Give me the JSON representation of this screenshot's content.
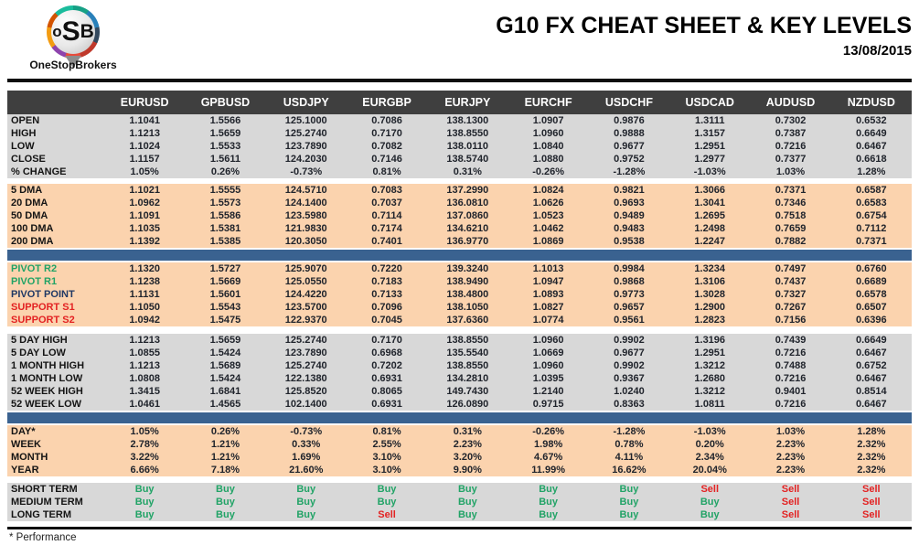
{
  "header": {
    "title": "G10 FX CHEAT SHEET & KEY LEVELS",
    "date": "13/08/2015",
    "logo": {
      "o": "o",
      "s": "S",
      "b": "B",
      "brand": "OneStopBrokers"
    }
  },
  "colors": {
    "header_bg": "#3F3F3F",
    "section_gray": "#D8D8D8",
    "section_peach": "#FBD3AE",
    "divider_blue": "#3A6290",
    "buy_green": "#21A366",
    "sell_red": "#E32222",
    "pivot_navy": "#1F3864"
  },
  "table": {
    "columns": [
      "EURUSD",
      "GPBUSD",
      "USDJPY",
      "EURGBP",
      "EURJPY",
      "EURCHF",
      "USDCHF",
      "USDCAD",
      "AUDUSD",
      "NZDUSD"
    ],
    "sections": [
      {
        "type": "rows",
        "id": "ohlc",
        "bg": "gray",
        "rows": [
          {
            "label": "OPEN",
            "values": [
              "1.1041",
              "1.5566",
              "125.1000",
              "0.7086",
              "138.1300",
              "1.0907",
              "0.9876",
              "1.3111",
              "0.7302",
              "0.6532"
            ]
          },
          {
            "label": "HIGH",
            "values": [
              "1.1213",
              "1.5659",
              "125.2740",
              "0.7170",
              "138.8550",
              "1.0960",
              "0.9888",
              "1.3157",
              "0.7387",
              "0.6649"
            ]
          },
          {
            "label": "LOW",
            "values": [
              "1.1024",
              "1.5533",
              "123.7890",
              "0.7082",
              "138.0110",
              "1.0840",
              "0.9677",
              "1.2951",
              "0.7216",
              "0.6467"
            ]
          },
          {
            "label": "CLOSE",
            "values": [
              "1.1157",
              "1.5611",
              "124.2030",
              "0.7146",
              "138.5740",
              "1.0880",
              "0.9752",
              "1.2977",
              "0.7377",
              "0.6618"
            ]
          },
          {
            "label": "% CHANGE",
            "values": [
              "1.05%",
              "0.26%",
              "-0.73%",
              "0.81%",
              "0.31%",
              "-0.26%",
              "-1.28%",
              "-1.03%",
              "1.03%",
              "1.28%"
            ]
          }
        ]
      },
      {
        "type": "rows",
        "id": "dma",
        "bg": "peach",
        "rows": [
          {
            "label": "5 DMA",
            "values": [
              "1.1021",
              "1.5555",
              "124.5710",
              "0.7083",
              "137.2990",
              "1.0824",
              "0.9821",
              "1.3066",
              "0.7371",
              "0.6587"
            ]
          },
          {
            "label": "20 DMA",
            "values": [
              "1.0962",
              "1.5573",
              "124.1400",
              "0.7037",
              "136.0810",
              "1.0626",
              "0.9693",
              "1.3041",
              "0.7346",
              "0.6583"
            ]
          },
          {
            "label": "50 DMA",
            "values": [
              "1.1091",
              "1.5586",
              "123.5980",
              "0.7114",
              "137.0860",
              "1.0523",
              "0.9489",
              "1.2695",
              "0.7518",
              "0.6754"
            ]
          },
          {
            "label": "100 DMA",
            "values": [
              "1.1035",
              "1.5381",
              "121.9830",
              "0.7174",
              "134.6210",
              "1.0462",
              "0.9483",
              "1.2498",
              "0.7659",
              "0.7112"
            ]
          },
          {
            "label": "200 DMA",
            "values": [
              "1.1392",
              "1.5385",
              "120.3050",
              "0.7401",
              "136.9770",
              "1.0869",
              "0.9538",
              "1.2247",
              "0.7882",
              "0.7371"
            ]
          }
        ]
      },
      {
        "type": "divider"
      },
      {
        "type": "rows",
        "id": "pivot",
        "bg": "peach",
        "rows": [
          {
            "label": "PIVOT R2",
            "color": "green",
            "values": [
              "1.1320",
              "1.5727",
              "125.9070",
              "0.7220",
              "139.3240",
              "1.1013",
              "0.9984",
              "1.3234",
              "0.7497",
              "0.6760"
            ]
          },
          {
            "label": "PIVOT R1",
            "color": "green",
            "values": [
              "1.1238",
              "1.5669",
              "125.0550",
              "0.7183",
              "138.9490",
              "1.0947",
              "0.9868",
              "1.3106",
              "0.7437",
              "0.6689"
            ]
          },
          {
            "label": "PIVOT POINT",
            "color": "navy",
            "values": [
              "1.1131",
              "1.5601",
              "124.4220",
              "0.7133",
              "138.4800",
              "1.0893",
              "0.9773",
              "1.3028",
              "0.7327",
              "0.6578"
            ]
          },
          {
            "label": "SUPPORT S1",
            "color": "red",
            "values": [
              "1.1050",
              "1.5543",
              "123.5700",
              "0.7096",
              "138.1050",
              "1.0827",
              "0.9657",
              "1.2900",
              "0.7267",
              "0.6507"
            ]
          },
          {
            "label": "SUPPORT S2",
            "color": "red",
            "values": [
              "1.0942",
              "1.5475",
              "122.9370",
              "0.7045",
              "137.6360",
              "1.0774",
              "0.9561",
              "1.2823",
              "0.7156",
              "0.6396"
            ]
          }
        ]
      },
      {
        "type": "rows",
        "id": "range",
        "bg": "gray",
        "rows": [
          {
            "label": "5 DAY HIGH",
            "values": [
              "1.1213",
              "1.5659",
              "125.2740",
              "0.7170",
              "138.8550",
              "1.0960",
              "0.9902",
              "1.3196",
              "0.7439",
              "0.6649"
            ]
          },
          {
            "label": "5 DAY LOW",
            "values": [
              "1.0855",
              "1.5424",
              "123.7890",
              "0.6968",
              "135.5540",
              "1.0669",
              "0.9677",
              "1.2951",
              "0.7216",
              "0.6467"
            ]
          },
          {
            "label": "1 MONTH HIGH",
            "values": [
              "1.1213",
              "1.5689",
              "125.2740",
              "0.7202",
              "138.8550",
              "1.0960",
              "0.9902",
              "1.3212",
              "0.7488",
              "0.6752"
            ]
          },
          {
            "label": "1 MONTH LOW",
            "values": [
              "1.0808",
              "1.5424",
              "122.1380",
              "0.6931",
              "134.2810",
              "1.0395",
              "0.9367",
              "1.2680",
              "0.7216",
              "0.6467"
            ]
          },
          {
            "label": "52 WEEK HIGH",
            "values": [
              "1.3415",
              "1.6841",
              "125.8520",
              "0.8065",
              "149.7430",
              "1.2140",
              "1.0240",
              "1.3212",
              "0.9401",
              "0.8514"
            ]
          },
          {
            "label": "52 WEEK LOW",
            "values": [
              "1.0461",
              "1.4565",
              "102.1400",
              "0.6931",
              "126.0890",
              "0.9715",
              "0.8363",
              "1.0811",
              "0.7216",
              "0.6467"
            ]
          }
        ]
      },
      {
        "type": "divider"
      },
      {
        "type": "rows",
        "id": "perf",
        "bg": "peach",
        "rows": [
          {
            "label": "DAY*",
            "values": [
              "1.05%",
              "0.26%",
              "-0.73%",
              "0.81%",
              "0.31%",
              "-0.26%",
              "-1.28%",
              "-1.03%",
              "1.03%",
              "1.28%"
            ]
          },
          {
            "label": "WEEK",
            "values": [
              "2.78%",
              "1.21%",
              "0.33%",
              "2.55%",
              "2.23%",
              "1.98%",
              "0.78%",
              "0.20%",
              "2.23%",
              "2.32%"
            ]
          },
          {
            "label": "MONTH",
            "values": [
              "3.22%",
              "1.21%",
              "1.69%",
              "3.10%",
              "3.20%",
              "4.67%",
              "4.11%",
              "2.34%",
              "2.23%",
              "2.32%"
            ]
          },
          {
            "label": "YEAR",
            "values": [
              "6.66%",
              "7.18%",
              "21.60%",
              "3.10%",
              "9.90%",
              "11.99%",
              "16.62%",
              "20.04%",
              "2.23%",
              "2.32%"
            ]
          }
        ]
      },
      {
        "type": "rows",
        "id": "signals",
        "bg": "gray",
        "signal": true,
        "rows": [
          {
            "label": "SHORT TERM",
            "values": [
              "Buy",
              "Buy",
              "Buy",
              "Buy",
              "Buy",
              "Buy",
              "Buy",
              "Sell",
              "Sell",
              "Sell"
            ]
          },
          {
            "label": "MEDIUM TERM",
            "values": [
              "Buy",
              "Buy",
              "Buy",
              "Buy",
              "Buy",
              "Buy",
              "Buy",
              "Buy",
              "Sell",
              "Sell"
            ]
          },
          {
            "label": "LONG TERM",
            "values": [
              "Buy",
              "Buy",
              "Buy",
              "Sell",
              "Buy",
              "Buy",
              "Buy",
              "Buy",
              "Sell",
              "Sell"
            ]
          }
        ]
      }
    ]
  },
  "footnote": "* Performance"
}
